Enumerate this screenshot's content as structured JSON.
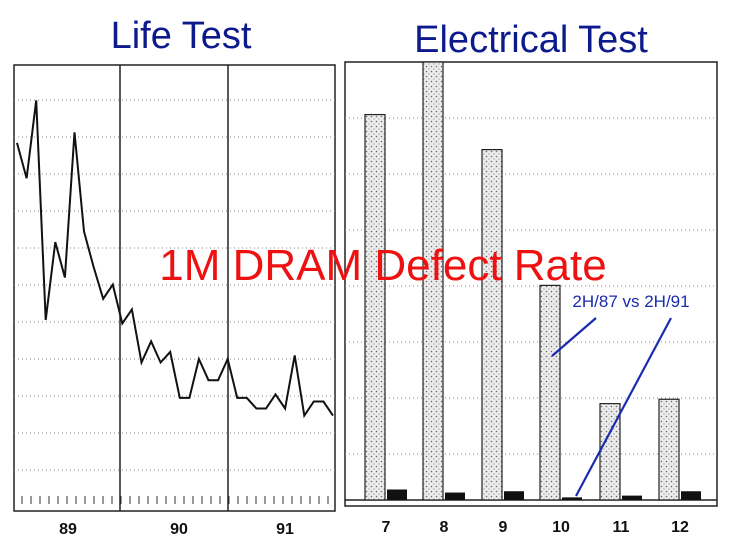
{
  "overlay_title": "1M DRAM Defect Rate",
  "chart_data": [
    {
      "type": "line",
      "title": "Life Test",
      "x_tick_labels": [
        "89",
        "90",
        "91"
      ],
      "y_tick_labels_printed": false,
      "y_range": [
        0,
        12
      ],
      "grid": "horizontal",
      "series": [
        {
          "values": [
            9.8,
            8.8,
            11.0,
            4.8,
            7.0,
            6.0,
            10.1,
            7.3,
            6.3,
            5.4,
            5.8,
            4.7,
            5.1,
            3.6,
            4.2,
            3.6,
            3.9,
            2.6,
            2.6,
            3.7,
            3.1,
            3.1,
            3.7,
            2.6,
            2.6,
            2.3,
            2.3,
            2.7,
            2.3,
            3.8,
            2.1,
            2.5,
            2.5,
            2.1
          ]
        }
      ]
    },
    {
      "type": "bar",
      "title": "Electrical Test",
      "categories": [
        "7",
        "8",
        "9",
        "10",
        "11",
        "12"
      ],
      "y_tick_labels_printed": false,
      "y_range": [
        0,
        100
      ],
      "grid": "horizontal",
      "series": [
        {
          "values": [
            88,
            100,
            80,
            49,
            22,
            23
          ]
        },
        {
          "values": [
            2.4,
            1.7,
            2.0,
            0.6,
            1.0,
            2.0
          ]
        }
      ],
      "annotation": "2H/87 vs 2H/91"
    }
  ]
}
